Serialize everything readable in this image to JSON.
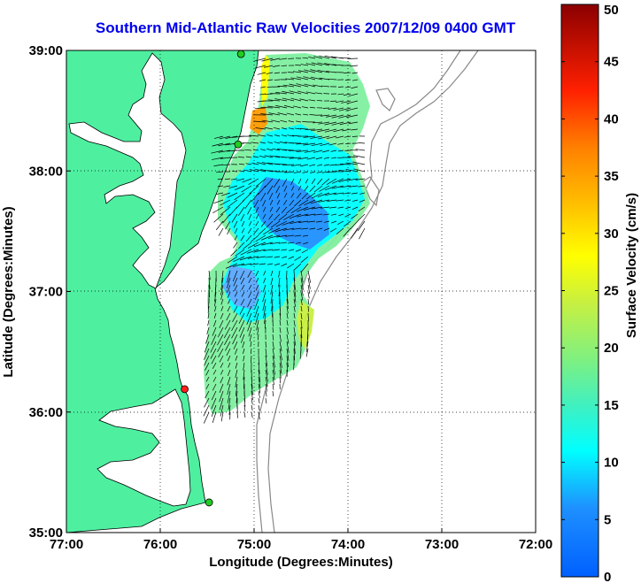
{
  "title": "Southern Mid-Atlantic Raw Velocities 2007/12/09 0400 GMT",
  "map": {
    "xlabel": "Longitude (Degrees:Minutes)",
    "ylabel": "Latitude (Degrees:Minutes)",
    "lon_range": [
      -77,
      -72
    ],
    "lat_range": [
      35,
      39
    ],
    "x_ticks": [
      "77:00",
      "76:00",
      "75:00",
      "74:00",
      "73:00",
      "72:00"
    ],
    "y_ticks": [
      "35:00",
      "36:00",
      "37:00",
      "38:00",
      "39:00"
    ],
    "land_color": "#4ef0a0",
    "grid": "dotted",
    "station_markers": [
      {
        "lon": -75.14,
        "lat": 38.97,
        "color": "#22cc22"
      },
      {
        "lon": -75.17,
        "lat": 38.22,
        "color": "#22cc22"
      },
      {
        "lon": -75.74,
        "lat": 36.19,
        "color": "#ff2020"
      },
      {
        "lon": -75.48,
        "lat": 35.25,
        "color": "#22cc22"
      }
    ]
  },
  "colorbar": {
    "label": "Surface Velocity (cm/s)",
    "min": 0,
    "max": 50,
    "ticks": [
      "0",
      "5",
      "10",
      "15",
      "20",
      "25",
      "30",
      "35",
      "40",
      "45",
      "50"
    ]
  }
}
